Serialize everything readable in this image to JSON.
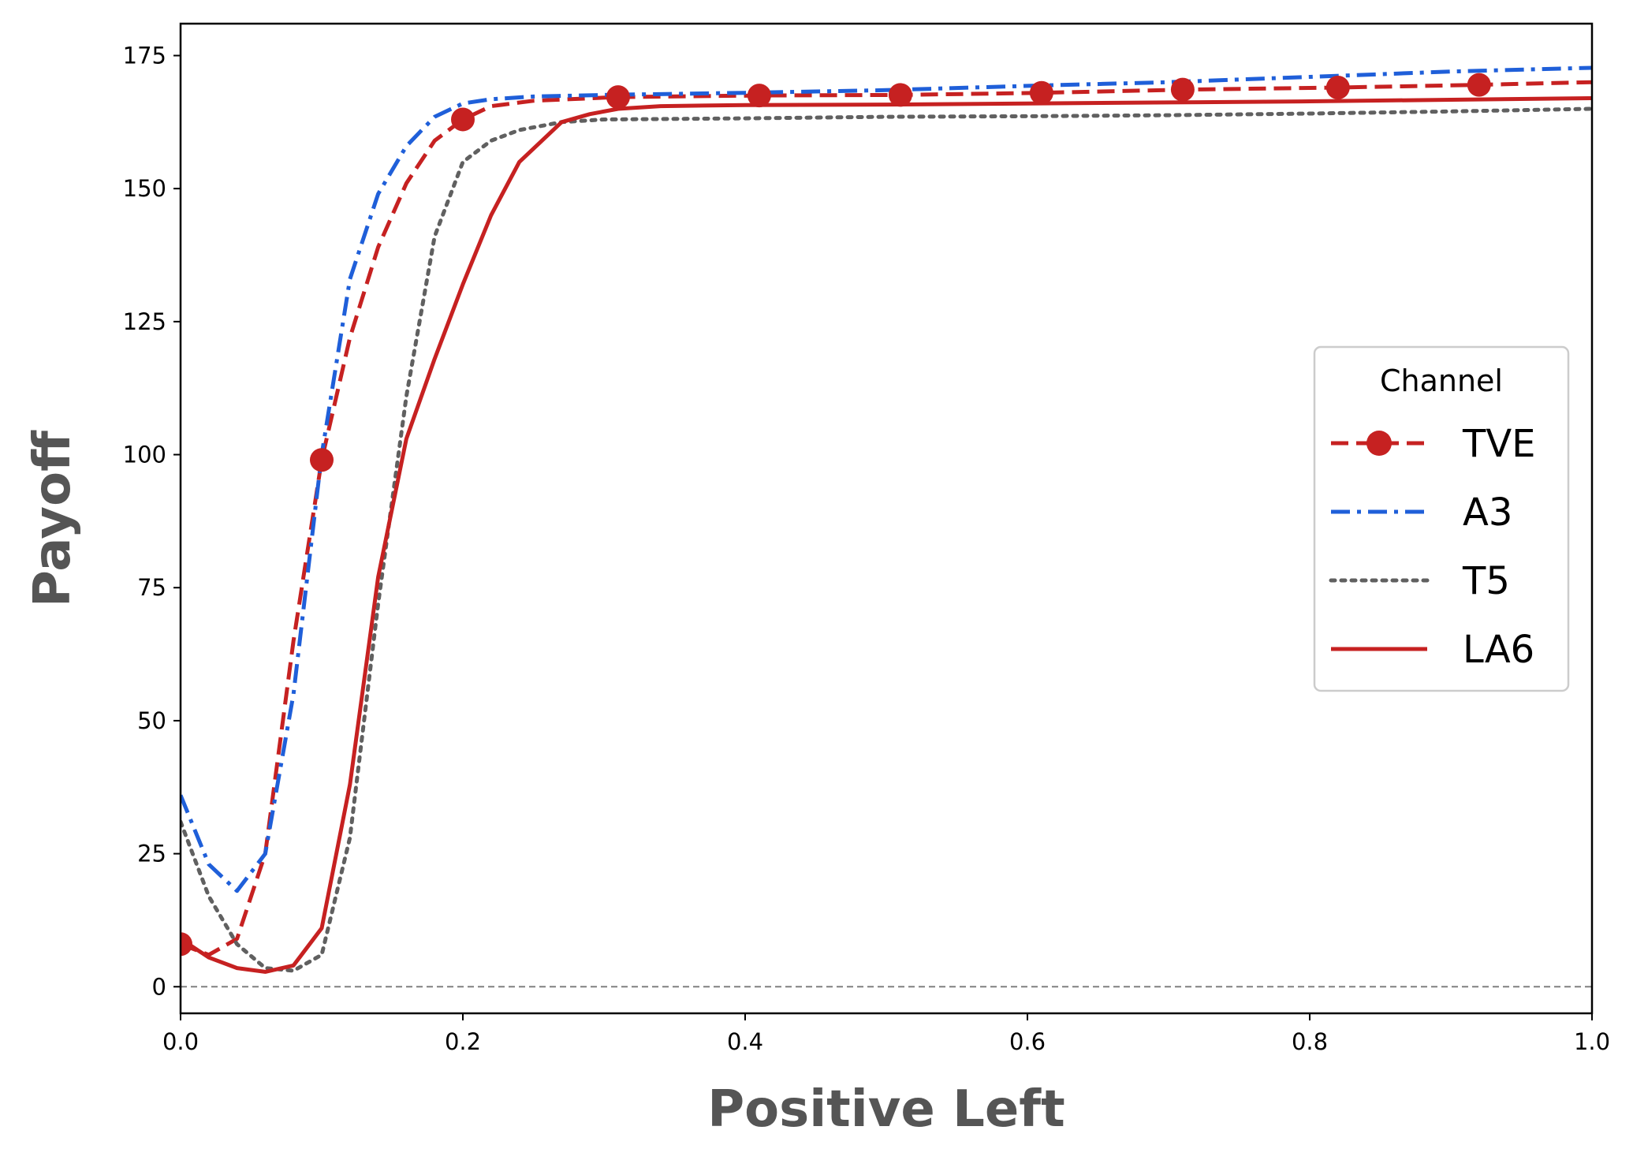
{
  "chart_data": {
    "type": "line",
    "title": "",
    "xlabel": "Positive Left",
    "ylabel": "Payoff",
    "xlim": [
      0.0,
      1.0
    ],
    "ylim": [
      -5,
      181
    ],
    "xticks": [
      "0.0",
      "0.2",
      "0.4",
      "0.6",
      "0.8",
      "1.0"
    ],
    "xtick_values": [
      0.0,
      0.2,
      0.4,
      0.6,
      0.8,
      1.0
    ],
    "yticks": [
      "0",
      "25",
      "50",
      "75",
      "100",
      "125",
      "150",
      "175"
    ],
    "ytick_values": [
      0,
      25,
      50,
      75,
      100,
      125,
      150,
      175
    ],
    "grid": false,
    "reference_line": {
      "y": 0,
      "style": "dashed",
      "color": "#808080"
    },
    "legend": {
      "title": "Channel",
      "placement": "center-right"
    },
    "series": [
      {
        "name": "TVE",
        "color": "#c62121",
        "style": "dashed",
        "marker": "circle",
        "x": [
          0.0,
          0.02,
          0.04,
          0.06,
          0.08,
          0.1,
          0.12,
          0.14,
          0.16,
          0.18,
          0.2,
          0.22,
          0.25,
          0.31,
          0.41,
          0.51,
          0.61,
          0.71,
          0.82,
          0.92,
          1.0
        ],
        "y": [
          8,
          6,
          9,
          25,
          65,
          99,
          122,
          139,
          151,
          159,
          163,
          165.5,
          166.5,
          167.2,
          167.5,
          167.6,
          168,
          168.6,
          169,
          169.5,
          170
        ],
        "marker_x": [
          0.0,
          0.1,
          0.2,
          0.31,
          0.41,
          0.51,
          0.61,
          0.71,
          0.82,
          0.92
        ],
        "marker_y": [
          8,
          99,
          163,
          167.2,
          167.5,
          167.6,
          168,
          168.6,
          169,
          169.5
        ]
      },
      {
        "name": "A3",
        "color": "#1f5fd9",
        "style": "dashdot",
        "x": [
          0.0,
          0.02,
          0.04,
          0.06,
          0.08,
          0.1,
          0.12,
          0.14,
          0.16,
          0.18,
          0.2,
          0.22,
          0.25,
          0.3,
          0.4,
          0.5,
          0.6,
          0.7,
          0.8,
          0.9,
          1.0
        ],
        "y": [
          36,
          23,
          18,
          25,
          55,
          100,
          133,
          149,
          158,
          163.5,
          166,
          166.8,
          167.3,
          167.6,
          168,
          168.5,
          169.3,
          170,
          171,
          172,
          172.7
        ]
      },
      {
        "name": "T5",
        "color": "#606060",
        "style": "dotted",
        "x": [
          0.0,
          0.02,
          0.04,
          0.06,
          0.08,
          0.1,
          0.12,
          0.14,
          0.16,
          0.18,
          0.2,
          0.22,
          0.24,
          0.27,
          0.3,
          0.4,
          0.5,
          0.6,
          0.7,
          0.8,
          0.9,
          1.0
        ],
        "y": [
          31,
          17,
          8,
          3.5,
          3,
          6,
          28,
          72,
          111,
          141,
          155,
          159,
          161,
          162.5,
          163,
          163.2,
          163.5,
          163.6,
          163.8,
          164.1,
          164.5,
          165
        ]
      },
      {
        "name": "LA6",
        "color": "#c62121",
        "style": "solid",
        "x": [
          0.0,
          0.02,
          0.04,
          0.06,
          0.08,
          0.1,
          0.12,
          0.14,
          0.16,
          0.18,
          0.2,
          0.22,
          0.24,
          0.27,
          0.29,
          0.31,
          0.34,
          0.4,
          0.5,
          0.6,
          0.7,
          0.8,
          0.9,
          1.0
        ],
        "y": [
          9,
          5.5,
          3.5,
          2.8,
          4,
          11,
          38,
          77,
          103,
          118,
          132,
          145,
          155,
          162.5,
          164,
          165,
          165.5,
          165.7,
          165.8,
          166,
          166.2,
          166.4,
          166.7,
          167
        ]
      }
    ]
  }
}
